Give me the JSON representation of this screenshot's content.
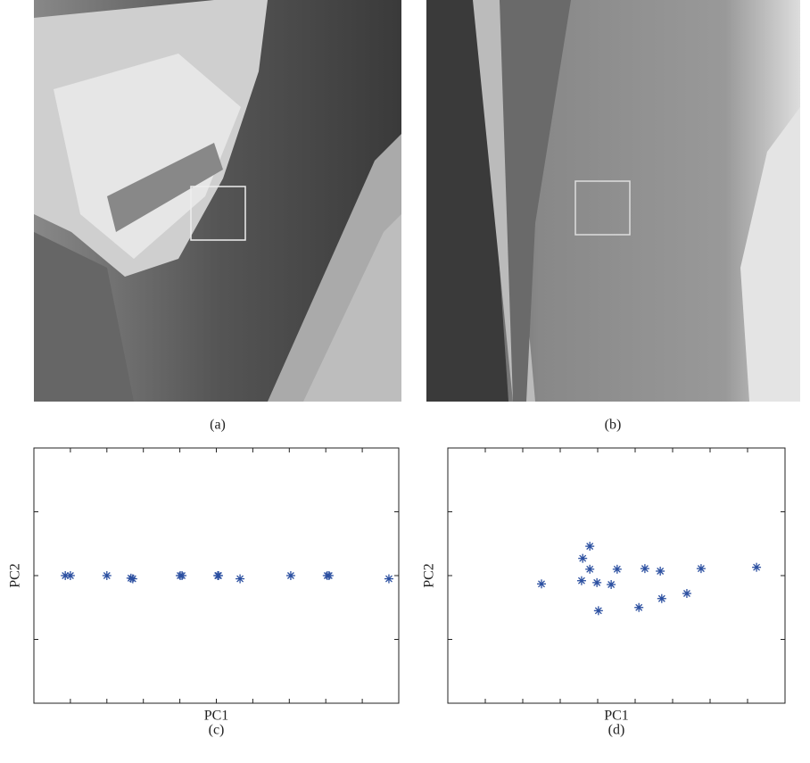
{
  "panels": [
    {
      "label": "(a)"
    },
    {
      "label": "(b)"
    }
  ],
  "chart_data": [
    {
      "type": "scatter",
      "caption": "(c)",
      "xlabel": "PC1",
      "ylabel": "PC2",
      "color": "#2b4fa0",
      "xlim": [
        0,
        10
      ],
      "ylim": [
        -2,
        2
      ],
      "xticks": [
        1,
        2,
        3,
        4,
        5,
        6,
        7,
        8,
        9
      ],
      "yticks": [
        -1,
        0,
        1
      ],
      "x": [
        0.86,
        1.0,
        2.0,
        2.66,
        2.71,
        4.01,
        4.06,
        5.04,
        5.06,
        5.65,
        7.04,
        8.04,
        8.09,
        9.73
      ],
      "y": [
        0,
        0,
        0,
        -0.04,
        -0.05,
        0,
        0,
        0,
        0,
        -0.05,
        0,
        0,
        0,
        -0.05
      ]
    },
    {
      "type": "scatter",
      "caption": "(d)",
      "xlabel": "PC1",
      "ylabel": "PC2",
      "color": "#2b4fa0",
      "xlim": [
        0,
        9
      ],
      "ylim": [
        -2,
        2
      ],
      "xticks": [
        1,
        2,
        3,
        4,
        5,
        6,
        7,
        8
      ],
      "yticks": [
        -1,
        0,
        1
      ],
      "x": [
        2.5,
        3.6,
        3.79,
        3.57,
        3.79,
        3.98,
        4.36,
        4.52,
        4.02,
        5.1,
        5.26,
        5.67,
        5.71,
        6.38,
        6.76,
        8.24
      ],
      "y": [
        -0.13,
        0.27,
        0.46,
        -0.08,
        0.1,
        -0.11,
        -0.14,
        0.1,
        -0.55,
        -0.5,
        0.11,
        0.07,
        -0.36,
        -0.28,
        0.11,
        0.13
      ]
    }
  ]
}
